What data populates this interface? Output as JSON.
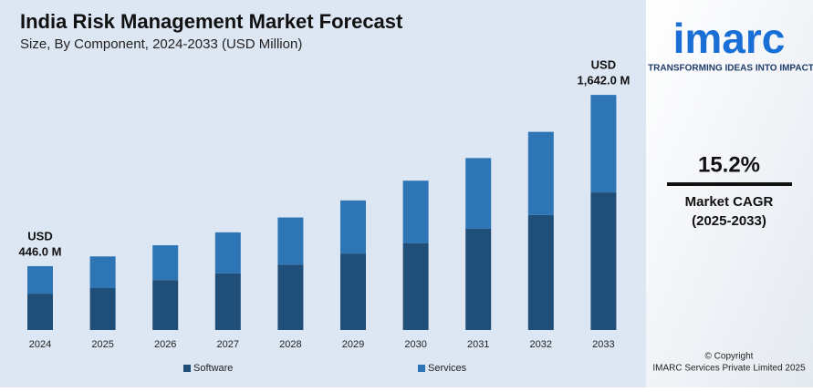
{
  "chart_data": {
    "type": "stacked-bar",
    "title": "India Risk Management Market Forecast",
    "subtitle": "Size, By Component, 2024-2033 (USD Million)",
    "categories": [
      "2024",
      "2025",
      "2026",
      "2027",
      "2028",
      "2029",
      "2030",
      "2031",
      "2032",
      "2033"
    ],
    "series": [
      {
        "name": "Software",
        "color": "#1f4e79",
        "values": [
          254,
          293,
          349,
          396,
          456,
          534,
          605,
          709,
          803,
          961
        ]
      },
      {
        "name": "Services",
        "color": "#2e75b6",
        "values": [
          192,
          221,
          243,
          286,
          330,
          371,
          438,
          492,
          581,
          681
        ]
      }
    ],
    "annotations": [
      [
        "USD",
        "446.0 M"
      ],
      [
        "USD",
        "1,642.0 M"
      ]
    ],
    "ylim": [
      0,
      1700
    ]
  },
  "sidebar": {
    "logo": "imarc",
    "tagline": "TRANSFORMING IDEAS INTO IMPACT",
    "cagr": "15.2%",
    "cagr_label": "Market CAGR",
    "cagr_period": "(2025-2033)",
    "copyright": "© Copyright",
    "company": "IMARC Services Private Limited 2025"
  }
}
